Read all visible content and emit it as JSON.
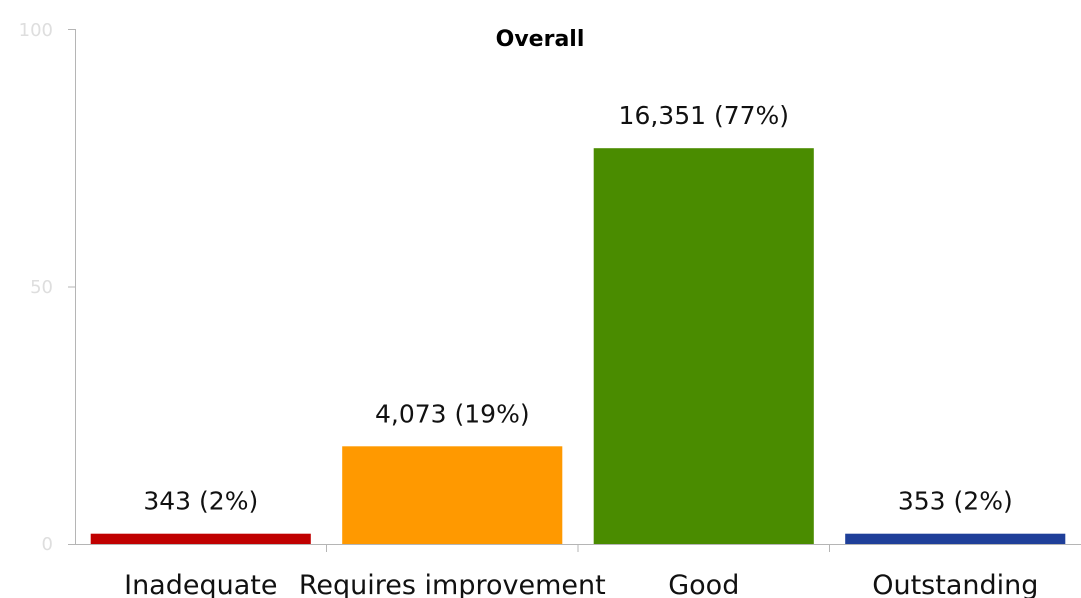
{
  "chart_data": {
    "type": "bar",
    "title": "Overall",
    "categories": [
      "Inadequate",
      "Requires improvement",
      "Good",
      "Outstanding"
    ],
    "values": [
      2,
      19,
      77,
      2
    ],
    "data_labels": [
      "343 (2%)",
      "4,073 (19%)",
      "16,351 (77%)",
      "353 (2%)"
    ],
    "colors": [
      "#c00000",
      "#ff9900",
      "#4a8c00",
      "#1f3f99"
    ],
    "ylim": [
      0,
      100
    ],
    "yticks": [
      0,
      50,
      100
    ],
    "ytick_labels": [
      "0",
      "50",
      "100"
    ],
    "xlabel": "",
    "ylabel": "",
    "grid": false,
    "legend": false
  }
}
